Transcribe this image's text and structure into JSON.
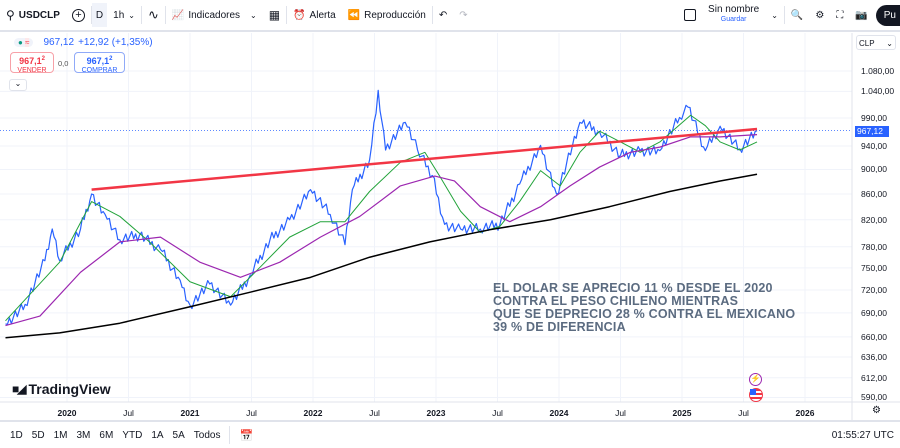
{
  "toolbar": {
    "symbol": "USDCLP",
    "interval_d": "D",
    "interval_1h": "1h",
    "indicators": "Indicadores",
    "alert": "Alerta",
    "replay": "Reproducción",
    "layout_name": "Sin nombre",
    "save": "Guardar",
    "publish": "Pu"
  },
  "legend": {
    "price": "967,12",
    "change": "+12,92 (+1,35%)",
    "sell_price": "967,1",
    "sell_sup": "2",
    "sell_label": "VENDER",
    "spread": "0,0",
    "buy_price": "967,1",
    "buy_sup": "2",
    "buy_label": "COMPRAR"
  },
  "currency": "CLP",
  "current_price_label": "967,12",
  "note": [
    "EL DOLAR SE APRECIO 11 % DESDE EL 2020",
    "CONTRA EL PESO CHILENO MIENTRAS",
    "QUE SE DEPRECIO 28 % CONTRA EL MEXICANO",
    "39 % DE DIFERENCIA"
  ],
  "logo": "TradingView",
  "ranges": [
    "1D",
    "5D",
    "1M",
    "3M",
    "6M",
    "YTD",
    "1A",
    "5A",
    "Todos"
  ],
  "clock": "01:55:27 UTC",
  "colors": {
    "price": "#2962ff",
    "ma_short": "#22a33a",
    "ma_mid": "#9c27b0",
    "ma_long": "#000000",
    "trend": "#f23645"
  },
  "chart_data": {
    "type": "line",
    "scale": "log",
    "ylim": [
      590,
      1080
    ],
    "y_ticks": [
      "1.080,00",
      "1.040,00",
      "990,00",
      "940,00",
      "900,00",
      "860,00",
      "820,00",
      "780,00",
      "750,00",
      "720,00",
      "690,00",
      "660,00",
      "636,00",
      "612,00",
      "590,00"
    ],
    "y_tick_values": [
      1080,
      1040,
      990,
      940,
      900,
      860,
      820,
      780,
      750,
      720,
      690,
      660,
      636,
      612,
      590
    ],
    "x_ticks": [
      {
        "label": "2020",
        "year": 2020,
        "bold": true
      },
      {
        "label": "Jul",
        "year": 2020.5
      },
      {
        "label": "2021",
        "year": 2021,
        "bold": true
      },
      {
        "label": "Jul",
        "year": 2021.5
      },
      {
        "label": "2022",
        "year": 2022,
        "bold": true
      },
      {
        "label": "Jul",
        "year": 2022.5
      },
      {
        "label": "2023",
        "year": 2023,
        "bold": true
      },
      {
        "label": "Jul",
        "year": 2023.5
      },
      {
        "label": "2024",
        "year": 2024,
        "bold": true
      },
      {
        "label": "Jul",
        "year": 2024.5
      },
      {
        "label": "2025",
        "year": 2025,
        "bold": true
      },
      {
        "label": "Jul",
        "year": 2025.5
      },
      {
        "label": "2026",
        "year": 2026,
        "bold": true
      }
    ],
    "series": [
      {
        "name": "USDCLP",
        "color": "#2962ff",
        "width": 1.2,
        "points": [
          [
            2019.5,
            676
          ],
          [
            2019.66,
            701
          ],
          [
            2019.82,
            760
          ],
          [
            2019.88,
            806
          ],
          [
            2019.94,
            760
          ],
          [
            2020.11,
            806
          ],
          [
            2020.2,
            860
          ],
          [
            2020.31,
            828
          ],
          [
            2020.43,
            790
          ],
          [
            2020.59,
            797
          ],
          [
            2020.76,
            776
          ],
          [
            2020.92,
            733
          ],
          [
            2021.0,
            700
          ],
          [
            2021.16,
            728
          ],
          [
            2021.33,
            700
          ],
          [
            2021.49,
            740
          ],
          [
            2021.65,
            790
          ],
          [
            2021.81,
            820
          ],
          [
            2021.98,
            867
          ],
          [
            2022.14,
            828
          ],
          [
            2022.26,
            783
          ],
          [
            2022.32,
            867
          ],
          [
            2022.46,
            916
          ],
          [
            2022.53,
            1042
          ],
          [
            2022.59,
            933
          ],
          [
            2022.75,
            982
          ],
          [
            2022.85,
            933
          ],
          [
            2022.97,
            890
          ],
          [
            2023.07,
            813
          ],
          [
            2023.2,
            806
          ],
          [
            2023.36,
            806
          ],
          [
            2023.52,
            813
          ],
          [
            2023.68,
            876
          ],
          [
            2023.85,
            941
          ],
          [
            2023.98,
            860
          ],
          [
            2024.11,
            941
          ],
          [
            2024.17,
            982
          ],
          [
            2024.33,
            965
          ],
          [
            2024.5,
            924
          ],
          [
            2024.66,
            932
          ],
          [
            2024.82,
            932
          ],
          [
            2024.98,
            991
          ],
          [
            2025.05,
            1010
          ],
          [
            2025.19,
            932
          ],
          [
            2025.31,
            975
          ],
          [
            2025.47,
            935
          ],
          [
            2025.61,
            967
          ]
        ]
      },
      {
        "name": "MA short",
        "color": "#22a33a",
        "width": 1,
        "points": [
          [
            2019.5,
            680
          ],
          [
            2019.94,
            758
          ],
          [
            2020.2,
            848
          ],
          [
            2020.43,
            825
          ],
          [
            2020.67,
            787
          ],
          [
            2021.0,
            731
          ],
          [
            2021.33,
            711
          ],
          [
            2021.57,
            751
          ],
          [
            2021.81,
            794
          ],
          [
            2022.06,
            817
          ],
          [
            2022.26,
            817
          ],
          [
            2022.46,
            864
          ],
          [
            2022.71,
            912
          ],
          [
            2022.91,
            929
          ],
          [
            2023.03,
            889
          ],
          [
            2023.2,
            833
          ],
          [
            2023.36,
            801
          ],
          [
            2023.52,
            810
          ],
          [
            2023.68,
            848
          ],
          [
            2023.85,
            898
          ],
          [
            2024.01,
            873
          ],
          [
            2024.17,
            929
          ],
          [
            2024.33,
            966
          ],
          [
            2024.5,
            947
          ],
          [
            2024.66,
            929
          ],
          [
            2024.82,
            947
          ],
          [
            2025.07,
            995
          ],
          [
            2025.19,
            976
          ],
          [
            2025.31,
            947
          ],
          [
            2025.47,
            933
          ],
          [
            2025.61,
            947
          ]
        ]
      },
      {
        "name": "MA mid",
        "color": "#9c27b0",
        "width": 1.2,
        "points": [
          [
            2019.5,
            674
          ],
          [
            2019.78,
            686
          ],
          [
            2020.11,
            744
          ],
          [
            2020.43,
            787
          ],
          [
            2020.76,
            794
          ],
          [
            2021.08,
            758
          ],
          [
            2021.41,
            737
          ],
          [
            2021.73,
            758
          ],
          [
            2022.06,
            794
          ],
          [
            2022.38,
            825
          ],
          [
            2022.71,
            873
          ],
          [
            2022.99,
            889
          ],
          [
            2023.15,
            881
          ],
          [
            2023.36,
            840
          ],
          [
            2023.6,
            817
          ],
          [
            2023.85,
            840
          ],
          [
            2024.09,
            873
          ],
          [
            2024.33,
            904
          ],
          [
            2024.58,
            929
          ],
          [
            2024.82,
            938
          ],
          [
            2025.07,
            956
          ],
          [
            2025.31,
            956
          ],
          [
            2025.61,
            960
          ]
        ]
      },
      {
        "name": "MA long",
        "color": "#000000",
        "width": 1.5,
        "points": [
          [
            2019.5,
            659
          ],
          [
            2019.94,
            665
          ],
          [
            2020.43,
            677
          ],
          [
            2021.0,
            698
          ],
          [
            2021.49,
            717
          ],
          [
            2021.98,
            737
          ],
          [
            2022.46,
            765
          ],
          [
            2022.95,
            787
          ],
          [
            2023.44,
            805
          ],
          [
            2023.93,
            820
          ],
          [
            2024.41,
            840
          ],
          [
            2024.9,
            864
          ],
          [
            2025.31,
            881
          ],
          [
            2025.61,
            892
          ]
        ]
      },
      {
        "name": "Trend line",
        "color": "#f23645",
        "width": 2.5,
        "points": [
          [
            2020.2,
            867
          ],
          [
            2025.61,
            970
          ]
        ]
      }
    ],
    "last_price": 967.12
  }
}
